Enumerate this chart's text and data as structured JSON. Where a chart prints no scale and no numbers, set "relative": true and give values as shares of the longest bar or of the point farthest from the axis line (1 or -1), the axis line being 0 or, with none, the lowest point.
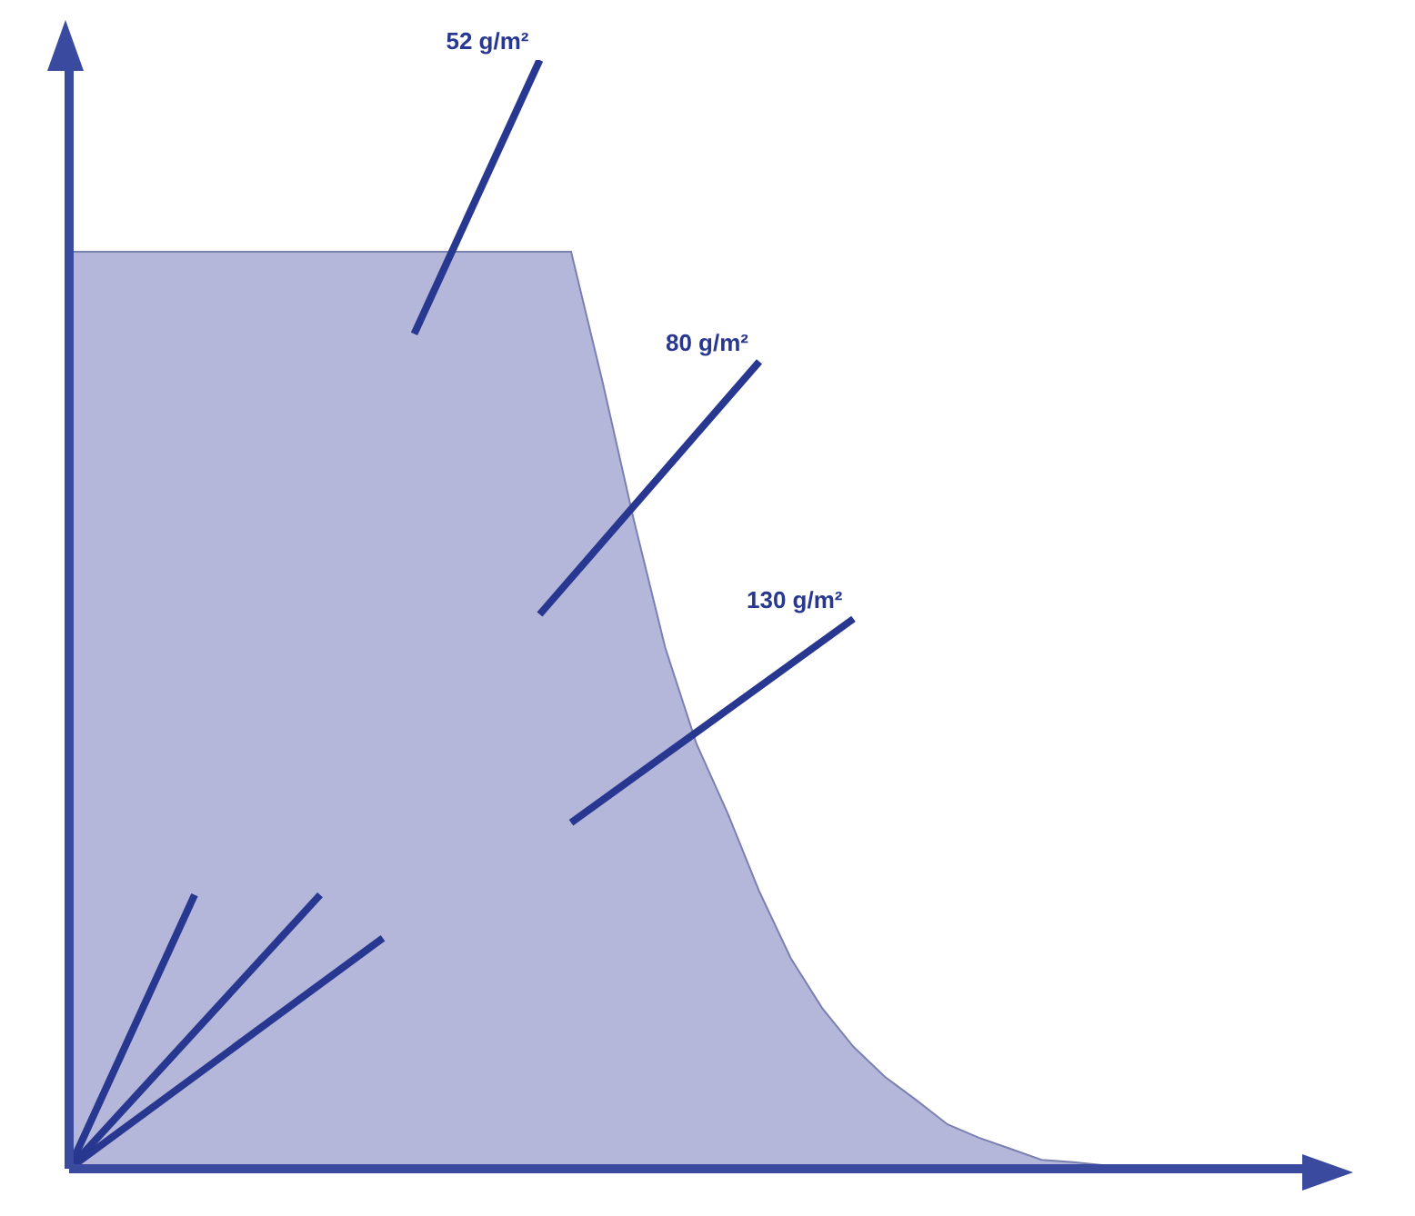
{
  "chart_data": {
    "type": "area",
    "relative": true,
    "grid": false,
    "legend": false,
    "marker": "none",
    "categories": [
      null,
      null,
      null,
      null,
      null,
      null,
      null,
      null,
      null,
      null,
      null,
      null,
      null,
      null,
      null,
      null,
      null,
      null,
      null,
      null,
      null,
      null,
      null,
      null,
      null,
      null,
      null,
      null,
      null,
      null,
      null,
      null,
      null,
      null,
      null,
      null,
      null,
      null,
      null,
      null,
      null
    ],
    "series": [
      {
        "color": "#b4b7d9",
        "values": [
          0.827,
          0.827,
          0.827,
          0.827,
          0.827,
          0.827,
          0.827,
          0.827,
          0.827,
          0.827,
          0.827,
          0.827,
          0.827,
          0.827,
          0.827,
          0.827,
          0.827,
          0.71,
          0.585,
          0.47,
          0.383,
          0.32,
          0.25,
          0.19,
          0.145,
          0.11,
          0.083,
          0.062,
          0.04,
          0.028,
          0.018,
          0.008,
          0.006,
          0.003,
          0,
          0,
          0,
          0,
          0,
          0,
          0
        ]
      },
      {
        "type": "line",
        "name": "52 g/m²",
        "color": "#283891",
        "values": [
          null,
          null,
          null,
          null,
          null,
          null,
          null,
          null,
          null,
          null,
          null,
          0.753,
          null,
          null,
          null,
          1,
          null,
          null,
          null,
          null,
          null,
          null,
          null,
          null,
          null,
          null,
          null,
          null,
          null,
          null,
          null,
          null,
          null,
          null,
          null,
          null,
          null,
          null,
          null,
          null,
          null
        ]
      },
      {
        "type": "line",
        "name": "80 g/m²",
        "color": "#283891",
        "values": [
          null,
          null,
          null,
          null,
          null,
          null,
          null,
          null,
          null,
          null,
          null,
          null,
          null,
          null,
          null,
          0.5,
          null,
          null,
          null,
          null,
          null,
          null,
          0.728,
          null,
          null,
          null,
          null,
          null,
          null,
          null,
          null,
          null,
          null,
          null,
          null,
          null,
          null,
          null,
          null,
          null,
          null
        ]
      },
      {
        "type": "line",
        "name": "130 g/m²",
        "color": "#283891",
        "values": [
          null,
          null,
          null,
          null,
          null,
          null,
          null,
          null,
          null,
          null,
          null,
          null,
          null,
          null,
          null,
          null,
          0.312,
          null,
          null,
          null,
          null,
          null,
          null,
          null,
          null,
          0.496,
          null,
          null,
          null,
          null,
          null,
          null,
          null,
          null,
          null,
          null,
          null,
          null,
          null,
          null,
          null
        ]
      },
      {
        "type": "line",
        "color": "#283891",
        "values": [
          0,
          null,
          null,
          null,
          0.247,
          null,
          null,
          null,
          null,
          null,
          null,
          null,
          null,
          null,
          null,
          null,
          null,
          null,
          null,
          null,
          null,
          null,
          null,
          null,
          null,
          null,
          null,
          null,
          null,
          null,
          null,
          null,
          null,
          null,
          null,
          null,
          null,
          null,
          null,
          null,
          null
        ]
      },
      {
        "type": "line",
        "color": "#283891",
        "values": [
          0,
          null,
          null,
          null,
          null,
          null,
          null,
          null,
          0.247,
          null,
          null,
          null,
          null,
          null,
          null,
          null,
          null,
          null,
          null,
          null,
          null,
          null,
          null,
          null,
          null,
          null,
          null,
          null,
          null,
          null,
          null,
          null,
          null,
          null,
          null,
          null,
          null,
          null,
          null,
          null,
          null
        ]
      },
      {
        "type": "line",
        "color": "#283891",
        "values": [
          0,
          null,
          null,
          null,
          null,
          null,
          null,
          null,
          null,
          null,
          0.208,
          null,
          null,
          null,
          null,
          null,
          null,
          null,
          null,
          null,
          null,
          null,
          null,
          null,
          null,
          null,
          null,
          null,
          null,
          null,
          null,
          null,
          null,
          null,
          null,
          null,
          null,
          null,
          null,
          null,
          null
        ]
      }
    ]
  }
}
